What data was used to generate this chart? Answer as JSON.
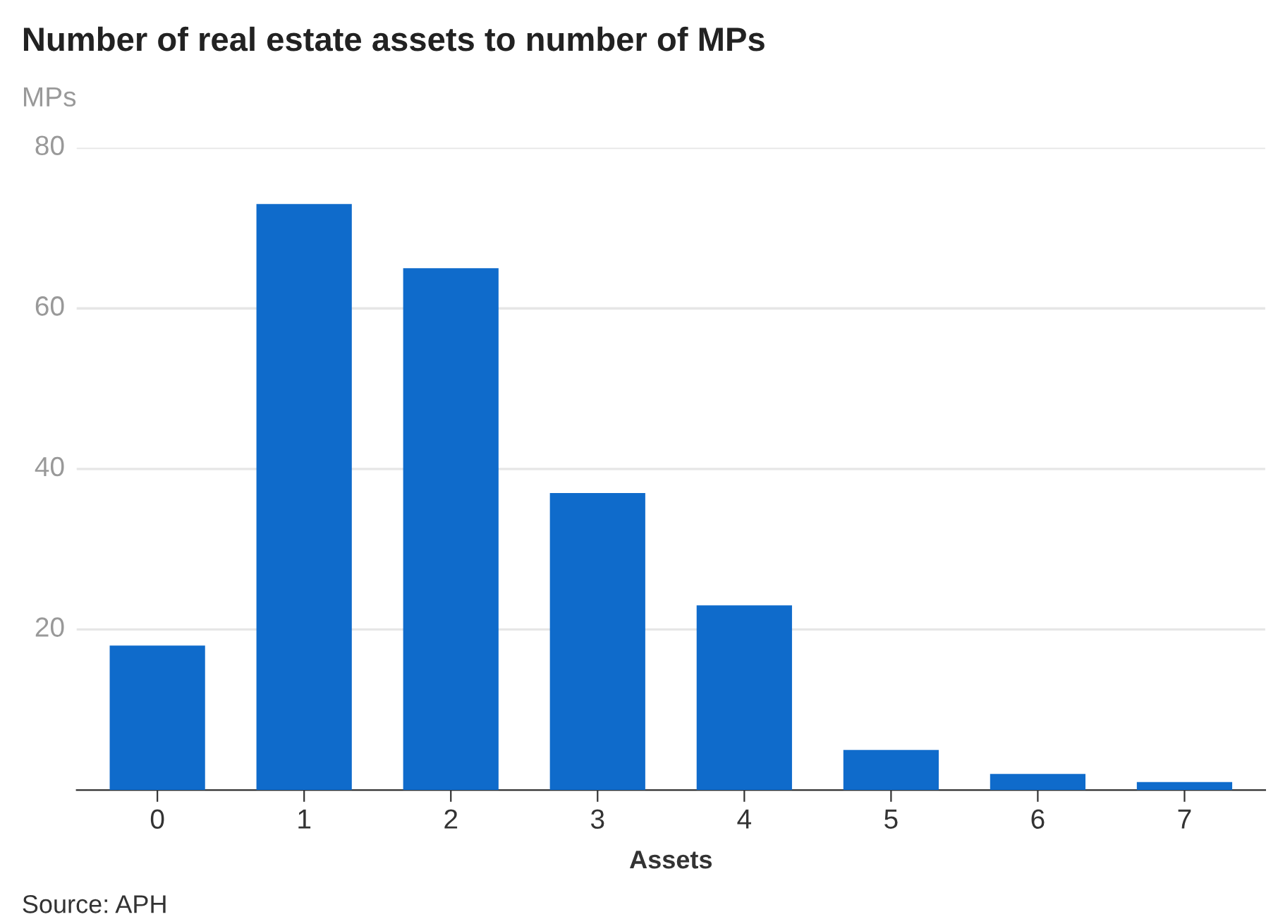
{
  "chart_data": {
    "type": "bar",
    "title": "Number of real estate assets to number of MPs",
    "ylabel": "MPs",
    "xlabel": "Assets",
    "categories": [
      "0",
      "1",
      "2",
      "3",
      "4",
      "5",
      "6",
      "7"
    ],
    "values": [
      18,
      73,
      65,
      37,
      23,
      5,
      2,
      1
    ],
    "color": "#0f6bcb",
    "ylim": [
      0,
      80
    ],
    "yticks": [
      20,
      40,
      60,
      80
    ],
    "grid": "y",
    "annotations": [
      "Source: APH"
    ]
  }
}
